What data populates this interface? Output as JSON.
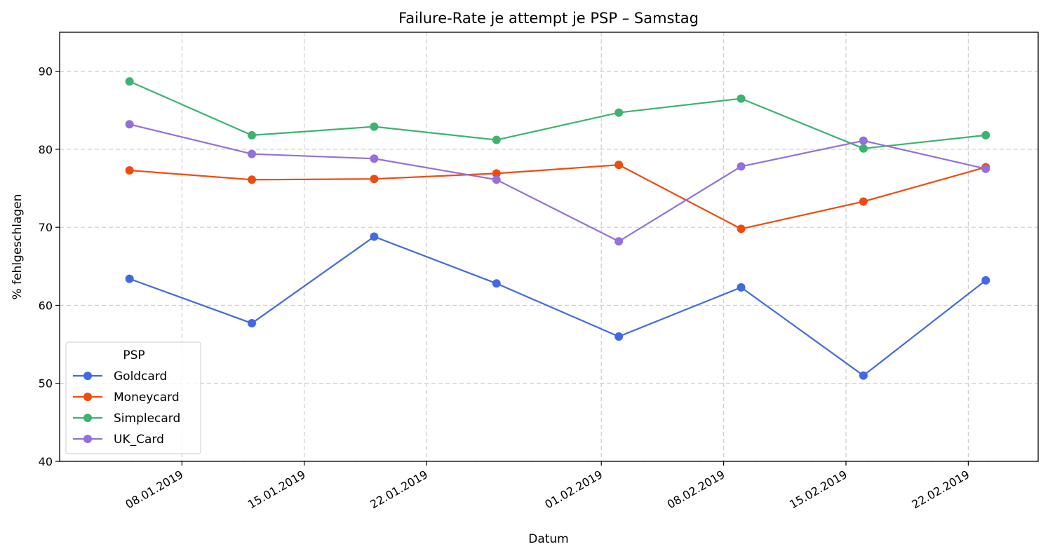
{
  "chart_data": {
    "type": "line",
    "title": "Failure-Rate je attempt je PSP – Samstag",
    "xlabel": "Datum",
    "ylabel": "% fehlgeschlagen",
    "ylim": [
      40,
      95
    ],
    "xlim": [
      "2019-01-01",
      "2019-02-26"
    ],
    "yticks": [
      40,
      50,
      60,
      70,
      80,
      90
    ],
    "xticks": [
      {
        "date": "2019-01-08",
        "label": "08.01.2019"
      },
      {
        "date": "2019-01-15",
        "label": "15.01.2019"
      },
      {
        "date": "2019-01-22",
        "label": "22.01.2019"
      },
      {
        "date": "2019-02-01",
        "label": "01.02.2019"
      },
      {
        "date": "2019-02-08",
        "label": "08.02.2019"
      },
      {
        "date": "2019-02-15",
        "label": "15.02.2019"
      },
      {
        "date": "2019-02-22",
        "label": "22.02.2019"
      }
    ],
    "grid": true,
    "legend": {
      "title": "PSP",
      "position": "lower-left"
    },
    "x": [
      "2019-01-05",
      "2019-01-12",
      "2019-01-19",
      "2019-01-26",
      "2019-02-02",
      "2019-02-09",
      "2019-02-16",
      "2019-02-23"
    ],
    "series": [
      {
        "name": "Goldcard",
        "color": "#4169e1",
        "values": [
          63.4,
          57.7,
          68.8,
          62.8,
          56.0,
          62.3,
          51.0,
          63.2
        ]
      },
      {
        "name": "Moneycard",
        "color": "#f04a0f",
        "values": [
          77.3,
          76.1,
          76.2,
          76.9,
          78.0,
          69.8,
          73.3,
          77.7
        ]
      },
      {
        "name": "Simplecard",
        "color": "#3cb371",
        "values": [
          88.7,
          81.8,
          82.9,
          81.2,
          84.7,
          86.5,
          80.1,
          81.8
        ]
      },
      {
        "name": "UK_Card",
        "color": "#9370db",
        "values": [
          83.2,
          79.4,
          78.8,
          76.1,
          68.2,
          77.8,
          81.1,
          77.5
        ]
      }
    ]
  }
}
